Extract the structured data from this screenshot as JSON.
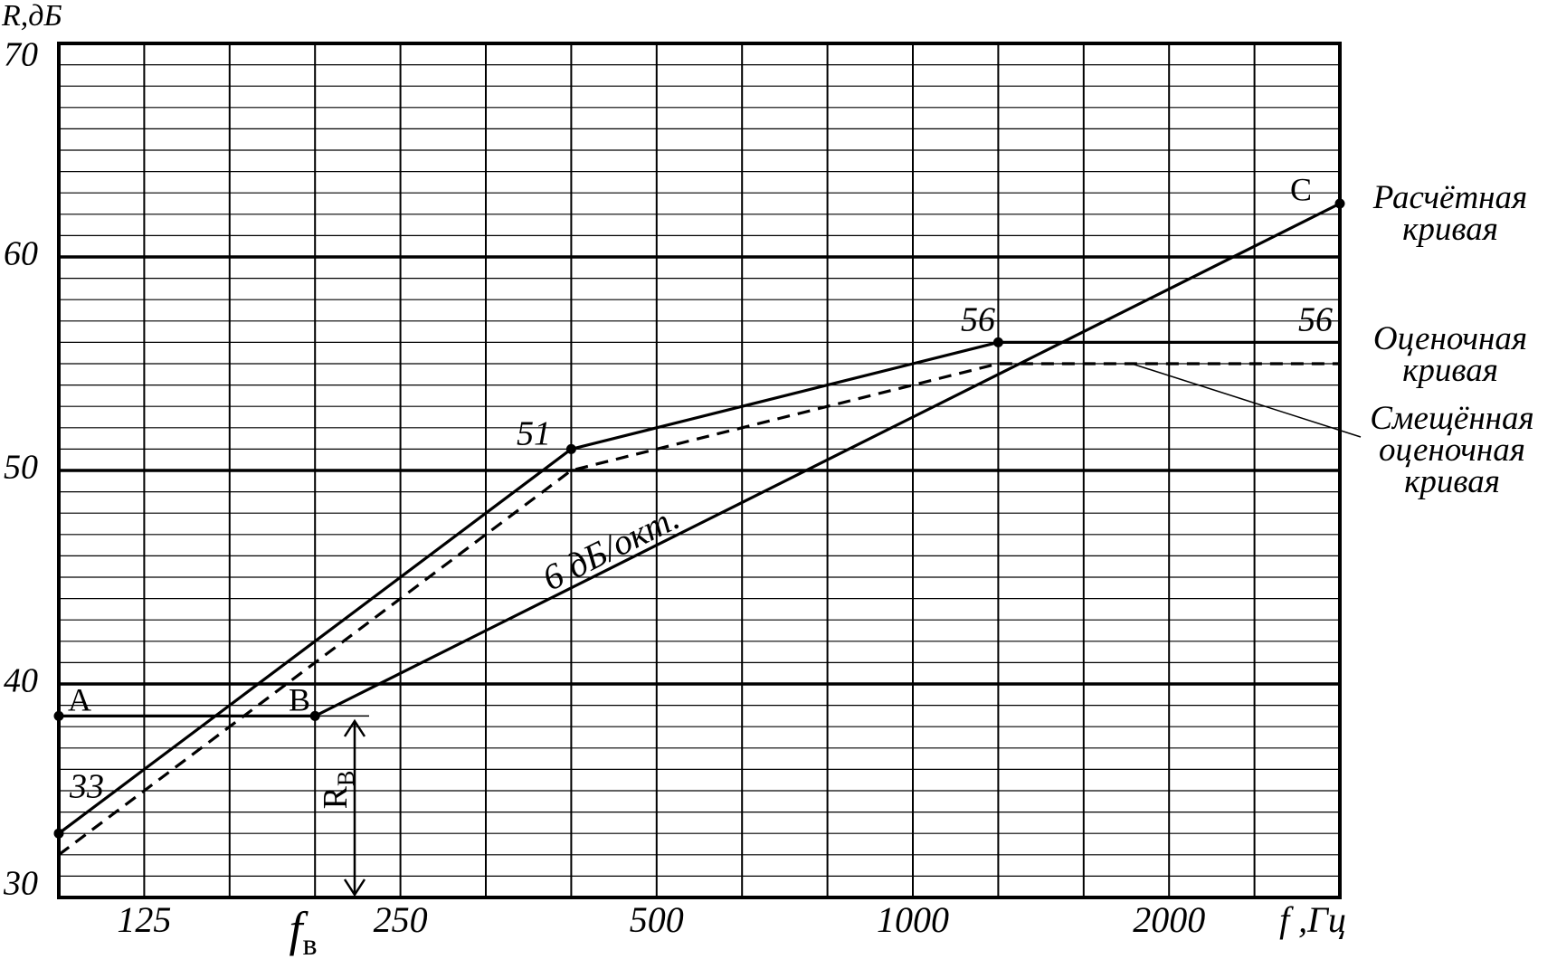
{
  "chart_data": {
    "type": "line",
    "y_label": "R,дБ",
    "x_label": "f ,Гц",
    "categories": [
      null,
      "125",
      null,
      null,
      "250",
      null,
      null,
      "500",
      null,
      null,
      "1000",
      null,
      null,
      "2000",
      null,
      null
    ],
    "ylim": [
      30,
      70
    ],
    "yticks": [
      30,
      40,
      50,
      60,
      70
    ],
    "yminorticks": [
      31,
      32,
      33,
      34,
      35,
      36,
      37,
      38,
      39,
      41,
      42,
      43,
      44,
      45,
      46,
      47,
      48,
      49,
      51,
      52,
      53,
      54,
      55,
      56,
      57,
      58,
      59,
      61,
      62,
      63,
      64,
      65,
      66,
      67,
      68,
      69
    ],
    "grid": true,
    "series": [
      {
        "name": "Расчётная кривая",
        "color": "#000000",
        "dashed": false,
        "values": [
          38.5,
          38.5,
          38.5,
          38.5,
          40.5,
          42.5,
          44.5,
          46.5,
          48.5,
          50.5,
          52.5,
          54.5,
          56.5,
          58.5,
          60.5,
          62.5
        ]
      },
      {
        "name": "Оценочная кривая",
        "color": "#000000",
        "dashed": false,
        "values": [
          33,
          36,
          39,
          42,
          45,
          48,
          51,
          52,
          53,
          54,
          55,
          56,
          56,
          56,
          56,
          56
        ]
      },
      {
        "name": "Смещённая оценочная кривая",
        "color": "#000000",
        "dashed": true,
        "values": [
          32,
          35,
          38,
          41,
          44,
          47,
          50,
          51,
          52,
          53,
          54,
          55,
          55,
          55,
          55,
          55
        ]
      }
    ],
    "annotations": [
      {
        "text": "A"
      },
      {
        "text": "B"
      },
      {
        "text": "C"
      },
      {
        "text": "6 дБ/окт."
      },
      {
        "text": "f",
        "sub": "в"
      },
      {
        "text": "R",
        "sub": "В"
      }
    ]
  }
}
